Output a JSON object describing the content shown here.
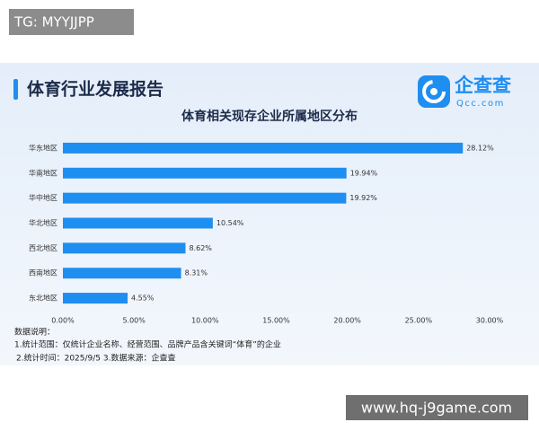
{
  "watermark_top": "TG: MYYJJPP",
  "watermark_bottom": "www.hq-j9game.com",
  "header": {
    "title": "体育行业发展报告",
    "logo_name": "企查查",
    "logo_domain": "Qcc.com"
  },
  "notes": [
    "数据说明：",
    "1.统计范围：仅统计企业名称、经营范围、品牌产品含关键词“体育”的企业",
    "2.统计时间：2025/9/5 3.数据来源：企查查"
  ],
  "chart_data": {
    "type": "bar",
    "orientation": "horizontal",
    "title": "体育相关现存企业所属地区分布",
    "categories": [
      "华东地区",
      "华南地区",
      "华中地区",
      "华北地区",
      "西北地区",
      "西南地区",
      "东北地区"
    ],
    "values": [
      28.12,
      19.94,
      19.92,
      10.54,
      8.62,
      8.31,
      4.55
    ],
    "value_labels": [
      "28.12%",
      "19.94%",
      "19.92%",
      "10.54%",
      "8.62%",
      "8.31%",
      "4.55%"
    ],
    "color": "#1f8ef1",
    "xlim": [
      0,
      30
    ],
    "xticks": [
      {
        "value": 0,
        "label": "0.00%"
      },
      {
        "value": 5,
        "label": "5.00%"
      },
      {
        "value": 10,
        "label": "10.00%"
      },
      {
        "value": 15,
        "label": "15.00%"
      },
      {
        "value": 20,
        "label": "20.00%"
      },
      {
        "value": 25,
        "label": "25.00%"
      },
      {
        "value": 30,
        "label": "30.00%"
      }
    ],
    "grid": false
  }
}
